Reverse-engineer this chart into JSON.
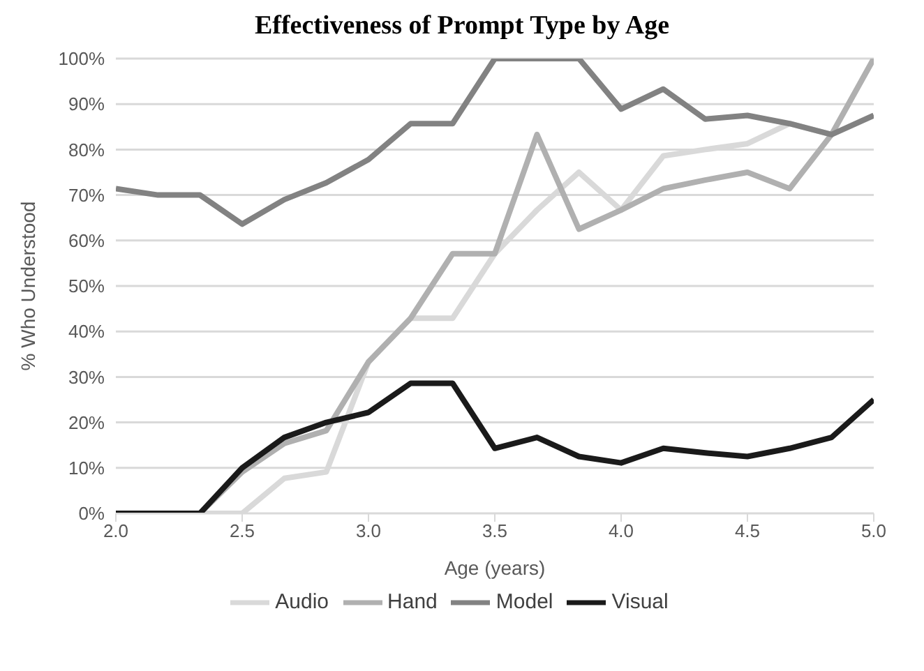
{
  "chart_data": {
    "type": "line",
    "title": "Effectiveness of Prompt Type by Age",
    "xlabel": "Age (years)",
    "ylabel": "% Who Understood",
    "x": [
      2.0,
      2.167,
      2.333,
      2.5,
      2.667,
      2.833,
      3.0,
      3.167,
      3.333,
      3.5,
      3.667,
      3.833,
      4.0,
      4.167,
      4.333,
      4.5,
      4.667,
      4.833,
      5.0
    ],
    "series": [
      {
        "name": "Audio",
        "color": "#d9d9d9",
        "values": [
          0,
          0,
          0,
          0,
          7.7,
          9.1,
          33.3,
          42.9,
          42.9,
          57.1,
          66.7,
          75,
          66.7,
          78.6,
          80,
          81.3,
          85.7,
          83.3,
          100
        ]
      },
      {
        "name": "Hand",
        "color": "#b0b0b0",
        "values": [
          0,
          0,
          0,
          9.1,
          15.4,
          18.2,
          33.3,
          42.9,
          57.1,
          57.1,
          83.3,
          62.5,
          66.7,
          71.4,
          73.3,
          75,
          71.4,
          83.3,
          100
        ]
      },
      {
        "name": "Model",
        "color": "#828282",
        "values": [
          71.4,
          70,
          70,
          63.6,
          69,
          72.7,
          77.8,
          85.7,
          85.7,
          100,
          100,
          100,
          88.9,
          93.3,
          86.7,
          87.5,
          85.7,
          83.3,
          87.5
        ]
      },
      {
        "name": "Visual",
        "color": "#1a1a1a",
        "values": [
          0,
          0,
          0,
          10,
          16.7,
          20,
          22.2,
          28.6,
          28.6,
          14.3,
          16.7,
          12.5,
          11.1,
          14.3,
          13.3,
          12.5,
          14.3,
          16.7,
          25
        ]
      }
    ],
    "xlim": [
      2.0,
      5.0
    ],
    "xticks": [
      {
        "value": 2,
        "label": "2.0"
      },
      {
        "value": 2.5,
        "label": "2.5"
      },
      {
        "value": 3,
        "label": "3.0"
      },
      {
        "value": 3.5,
        "label": "3.5"
      },
      {
        "value": 4,
        "label": "4.0"
      },
      {
        "value": 4.5,
        "label": "4.5"
      },
      {
        "value": 5,
        "label": "5.0"
      }
    ],
    "ylim": [
      0,
      100
    ],
    "yticks": [
      {
        "value": 0,
        "label": "0%"
      },
      {
        "value": 10,
        "label": "10%"
      },
      {
        "value": 20,
        "label": "20%"
      },
      {
        "value": 30,
        "label": "30%"
      },
      {
        "value": 40,
        "label": "40%"
      },
      {
        "value": 50,
        "label": "50%"
      },
      {
        "value": 60,
        "label": "60%"
      },
      {
        "value": 70,
        "label": "70%"
      },
      {
        "value": 80,
        "label": "80%"
      },
      {
        "value": 90,
        "label": "90%"
      },
      {
        "value": 100,
        "label": "100%"
      }
    ],
    "grid": "y",
    "legend": "bottom",
    "marker": "none",
    "line_style": "solid"
  }
}
